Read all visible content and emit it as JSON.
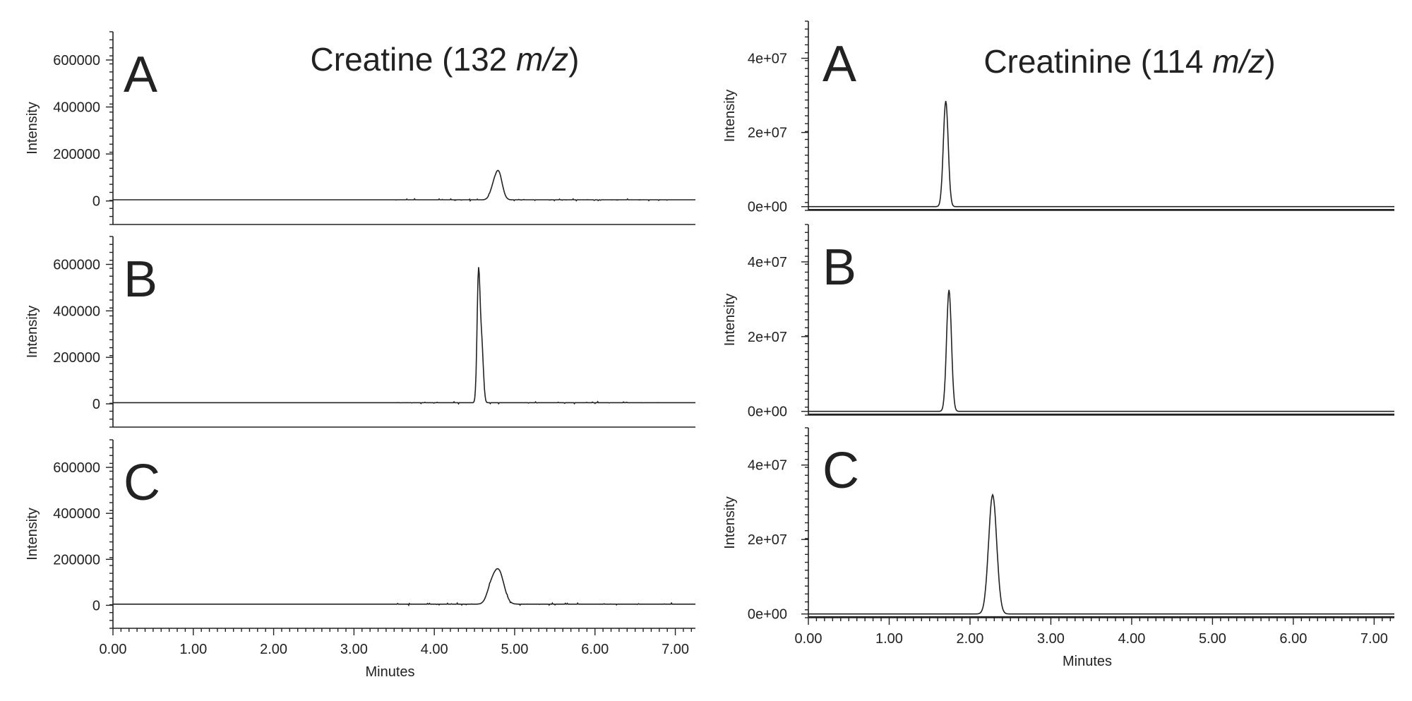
{
  "chart_data": [
    {
      "type": "line",
      "title": "Creatine (132 m/z)",
      "title_prefix": "Creatine (132 ",
      "title_mz": "m/z",
      "title_suffix": ")",
      "xlabel": "Minutes",
      "ylabel": "Intensity",
      "xlim": [
        0,
        7.25
      ],
      "xticks": [
        "0.00",
        "1.00",
        "2.00",
        "3.00",
        "4.00",
        "5.00",
        "6.00",
        "7.00"
      ],
      "ylim": [
        -100000,
        720000
      ],
      "yticks": [
        "0",
        "200000",
        "400000",
        "600000"
      ],
      "panels": [
        {
          "label": "A",
          "baseline": 5000,
          "noise": 4000,
          "peaks": [
            {
              "center": 4.8,
              "height": 115000,
              "width": 0.045
            },
            {
              "center": 4.73,
              "height": 40000,
              "width": 0.04
            }
          ]
        },
        {
          "label": "B",
          "baseline": 5000,
          "noise": 5000,
          "peaks": [
            {
              "center": 4.55,
              "height": 550000,
              "width": 0.018
            },
            {
              "center": 4.59,
              "height": 250000,
              "width": 0.02
            }
          ]
        },
        {
          "label": "C",
          "baseline": 5000,
          "noise": 5000,
          "peaks": [
            {
              "center": 4.8,
              "height": 145000,
              "width": 0.065
            },
            {
              "center": 4.7,
              "height": 55000,
              "width": 0.05
            }
          ]
        }
      ]
    },
    {
      "type": "line",
      "title": "Creatinine (114 m/z)",
      "title_prefix": "Creatinine (114 ",
      "title_mz": "m/z",
      "title_suffix": ")",
      "xlabel": "Minutes",
      "ylabel": "Intensity",
      "xlim": [
        0,
        7.25
      ],
      "xticks": [
        "0.00",
        "1.00",
        "2.00",
        "3.00",
        "4.00",
        "5.00",
        "6.00",
        "7.00"
      ],
      "ylim": [
        -1000000,
        50000000
      ],
      "yticks": [
        "0e+00",
        "2e+07",
        "4e+07"
      ],
      "panels": [
        {
          "label": "A",
          "baseline": 0,
          "noise": 0,
          "peaks": [
            {
              "center": 1.7,
              "height": 28500000,
              "width": 0.03
            }
          ]
        },
        {
          "label": "B",
          "baseline": 0,
          "noise": 0,
          "peaks": [
            {
              "center": 1.74,
              "height": 32500000,
              "width": 0.03
            }
          ]
        },
        {
          "label": "C",
          "baseline": 0,
          "noise": 0,
          "peaks": [
            {
              "center": 2.28,
              "height": 32000000,
              "width": 0.05
            }
          ]
        }
      ]
    }
  ]
}
